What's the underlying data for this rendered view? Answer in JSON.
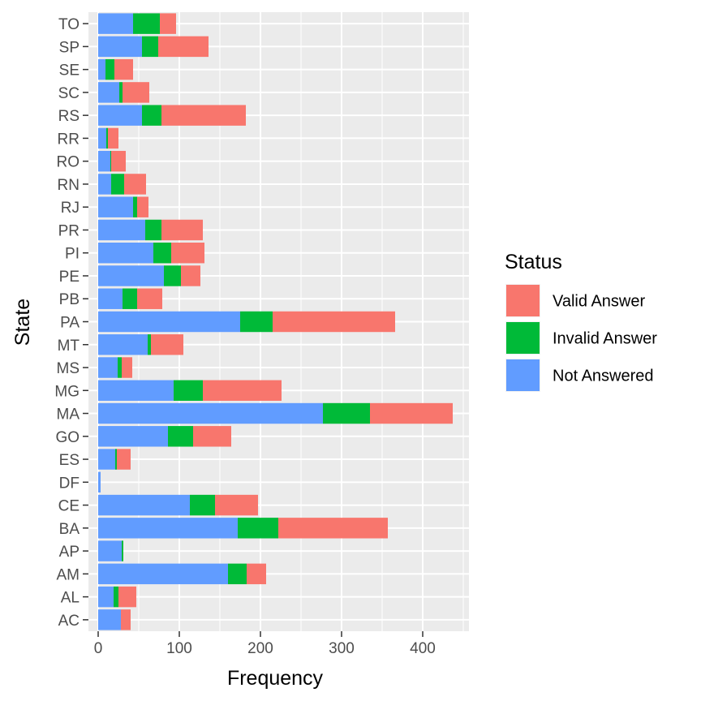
{
  "chart_data": {
    "type": "bar",
    "orientation": "horizontal",
    "stacked": true,
    "categories": [
      "AC",
      "AL",
      "AM",
      "AP",
      "BA",
      "CE",
      "DF",
      "ES",
      "GO",
      "MA",
      "MG",
      "MS",
      "MT",
      "PA",
      "PB",
      "PE",
      "PI",
      "PR",
      "RJ",
      "RN",
      "RO",
      "RR",
      "RS",
      "SC",
      "SE",
      "SP",
      "TO"
    ],
    "series": [
      {
        "name": "Not Answered",
        "color": "#619CFF",
        "values": [
          28,
          19,
          160,
          29,
          172,
          113,
          3,
          21,
          86,
          277,
          93,
          24,
          61,
          175,
          30,
          81,
          68,
          58,
          43,
          16,
          15,
          10,
          54,
          26,
          9,
          54,
          43
        ]
      },
      {
        "name": "Invalid Answer",
        "color": "#00BA38",
        "values": [
          0,
          6,
          23,
          2,
          50,
          31,
          0,
          2,
          31,
          58,
          36,
          5,
          4,
          40,
          18,
          21,
          22,
          20,
          5,
          16,
          1,
          2,
          24,
          4,
          11,
          20,
          33
        ]
      },
      {
        "name": "Valid Answer",
        "color": "#F8766D",
        "values": [
          12,
          22,
          24,
          0,
          135,
          53,
          0,
          17,
          47,
          102,
          97,
          13,
          40,
          151,
          31,
          24,
          41,
          51,
          14,
          27,
          18,
          13,
          104,
          33,
          23,
          62,
          20
        ]
      }
    ],
    "xlabel": "Frequency",
    "ylabel": "State",
    "xlim": [
      -12,
      457
    ],
    "x_ticks": [
      0,
      100,
      200,
      300,
      400
    ],
    "grid": true,
    "legend": {
      "title": "Status",
      "position": "right",
      "entries": [
        {
          "label": "Valid Answer",
          "color": "#F8766D"
        },
        {
          "label": "Invalid Answer",
          "color": "#00BA38"
        },
        {
          "label": "Not Answered",
          "color": "#619CFF"
        }
      ]
    }
  }
}
